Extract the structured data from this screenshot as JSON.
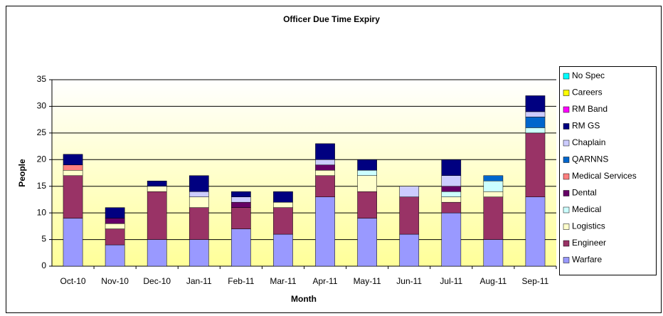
{
  "chart_data": {
    "type": "stacked_bar",
    "title": "Officer Due Time Expiry",
    "x_label": "Month",
    "y_label": "People",
    "categories": [
      "Oct-10",
      "Nov-10",
      "Dec-10",
      "Jan-11",
      "Feb-11",
      "Mar-11",
      "Apr-11",
      "May-11",
      "Jun-11",
      "Jul-11",
      "Aug-11",
      "Sep-11"
    ],
    "series": [
      {
        "name": "Warfare",
        "color": "#9999ff",
        "values": [
          9,
          4,
          5,
          5,
          7,
          6,
          13,
          9,
          6,
          10,
          5,
          13
        ]
      },
      {
        "name": "Engineer",
        "color": "#993366",
        "values": [
          8,
          3,
          9,
          6,
          4,
          5,
          4,
          5,
          7,
          2,
          8,
          12
        ]
      },
      {
        "name": "Logistics",
        "color": "#ffffcc",
        "values": [
          1,
          1,
          1,
          2,
          0,
          1,
          1,
          3,
          0,
          1,
          1,
          0
        ]
      },
      {
        "name": "Medical",
        "color": "#ccffff",
        "values": [
          0,
          0,
          0,
          0,
          0,
          0,
          0,
          1,
          0,
          1,
          2,
          1
        ]
      },
      {
        "name": "Dental",
        "color": "#660066",
        "values": [
          0,
          1,
          0,
          0,
          1,
          0,
          1,
          0,
          0,
          1,
          0,
          0
        ]
      },
      {
        "name": "Medical Services",
        "color": "#ff8080",
        "values": [
          1,
          0,
          0,
          0,
          0,
          0,
          0,
          0,
          0,
          0,
          0,
          0
        ]
      },
      {
        "name": "QARNNS",
        "color": "#0066cc",
        "values": [
          0,
          0,
          0,
          0,
          0,
          0,
          0,
          0,
          0,
          0,
          1,
          2
        ]
      },
      {
        "name": "Chaplain",
        "color": "#ccccff",
        "values": [
          0,
          0,
          0,
          1,
          1,
          0,
          1,
          0,
          2,
          2,
          0,
          1
        ]
      },
      {
        "name": "RM GS",
        "color": "#000080",
        "values": [
          2,
          2,
          1,
          3,
          1,
          2,
          3,
          2,
          0,
          3,
          0,
          3
        ]
      },
      {
        "name": "RM Band",
        "color": "#ff00ff",
        "values": [
          0,
          0,
          0,
          0,
          0,
          0,
          0,
          0,
          0,
          0,
          0,
          0
        ]
      },
      {
        "name": "Careers",
        "color": "#ffff00",
        "values": [
          0,
          0,
          0,
          0,
          0,
          0,
          0,
          0,
          0,
          0,
          0,
          0
        ]
      },
      {
        "name": "No Spec",
        "color": "#00ffff",
        "values": [
          0,
          0,
          0,
          0,
          0,
          0,
          0,
          0,
          0,
          0,
          0,
          0
        ]
      }
    ],
    "ylim": [
      0,
      35
    ],
    "yticks": [
      0,
      5,
      10,
      15,
      20,
      25,
      30,
      35
    ],
    "grid": true,
    "legend": "right"
  }
}
